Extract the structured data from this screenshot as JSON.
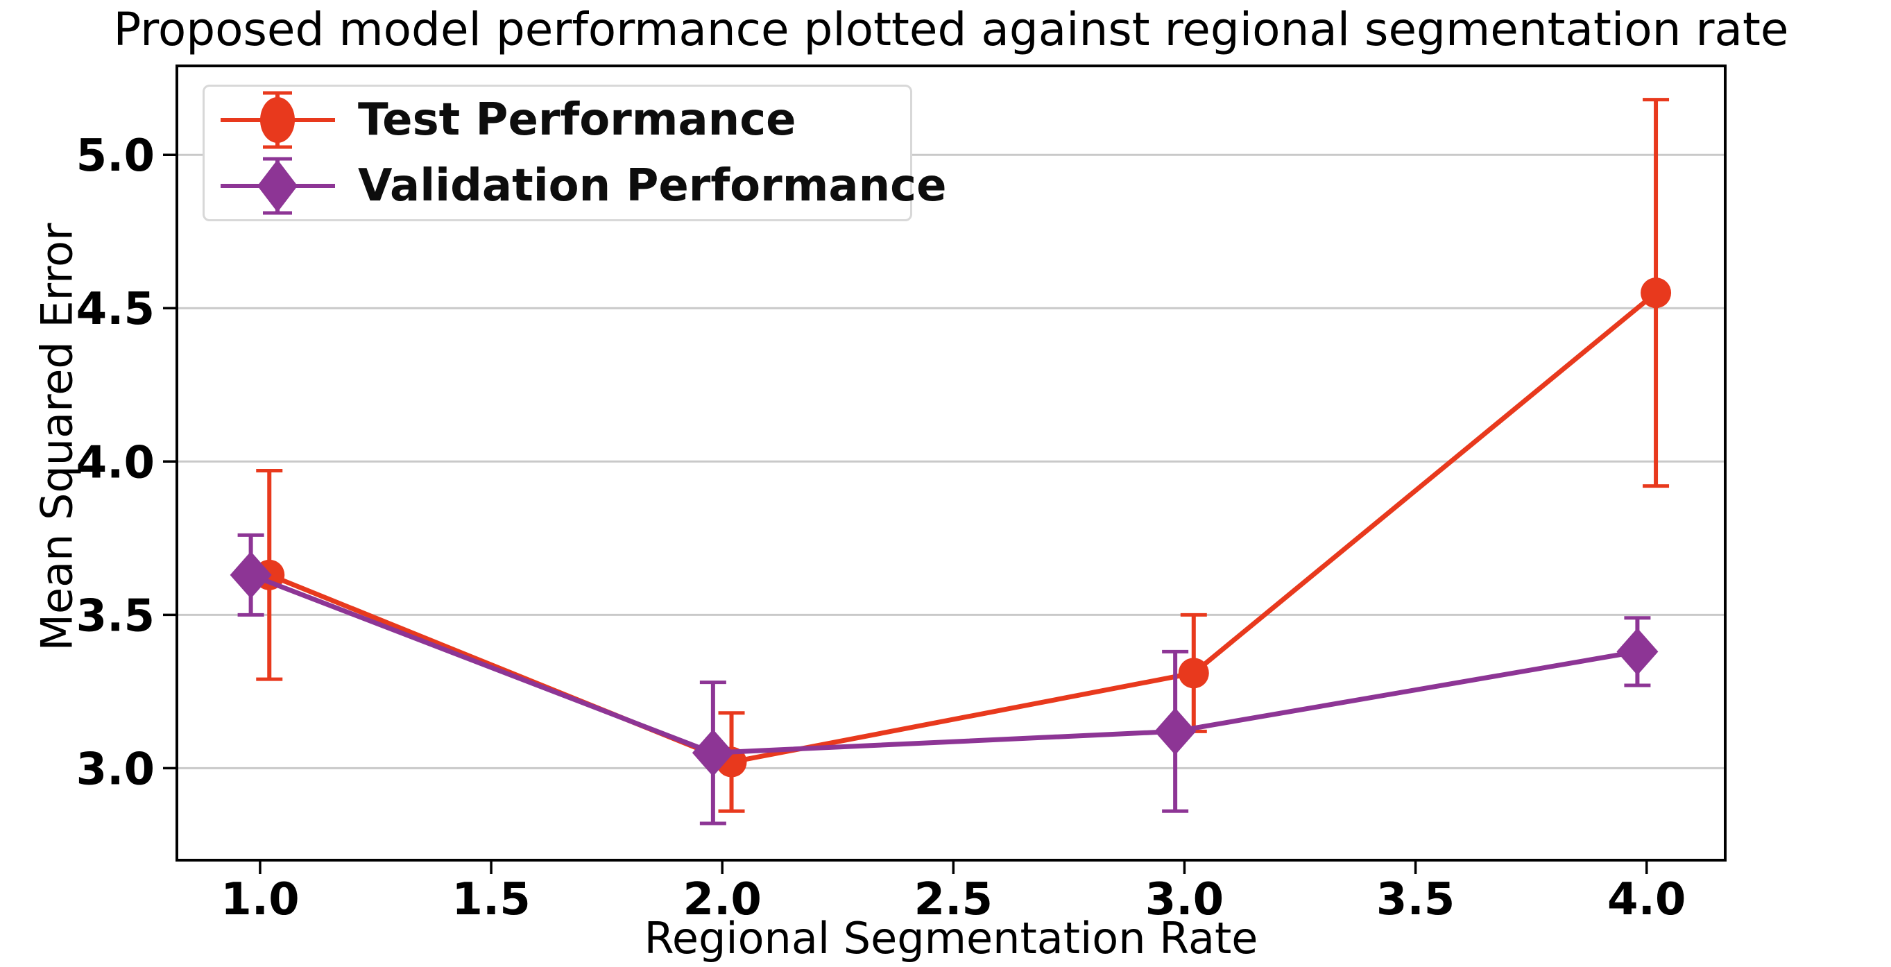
{
  "chart_data": {
    "type": "line",
    "title": "Proposed model performance plotted against regional segmentation rate",
    "xlabel": "Regional Segmentation Rate",
    "ylabel": "Mean Squared Error",
    "xlim": [
      0.82,
      4.17
    ],
    "ylim": [
      2.7,
      5.29
    ],
    "grid": "horizontal",
    "grid_color": "#c9c9c9",
    "spine_color": "#000000",
    "x_ticks": {
      "values": [
        1.0,
        1.5,
        2.0,
        2.5,
        3.0,
        3.5,
        4.0
      ],
      "labels": [
        "1.0",
        "1.5",
        "2.0",
        "2.5",
        "3.0",
        "3.5",
        "4.0"
      ]
    },
    "y_ticks": {
      "values": [
        3.0,
        3.5,
        4.0,
        4.5,
        5.0
      ],
      "labels": [
        "3.0",
        "3.5",
        "4.0",
        "4.5",
        "5.0"
      ]
    },
    "legend": {
      "position": "upper left"
    },
    "series": [
      {
        "name": "Test Performance",
        "color": "#e8391d",
        "marker": "circle",
        "x": [
          1.02,
          2.02,
          3.02,
          4.02
        ],
        "y": [
          3.63,
          3.02,
          3.31,
          4.55
        ],
        "yerr": [
          0.34,
          0.16,
          0.19,
          0.63
        ]
      },
      {
        "name": "Validation Performance",
        "color": "#8d3595",
        "marker": "diamond",
        "x": [
          0.98,
          1.98,
          2.98,
          3.98
        ],
        "y": [
          3.63,
          3.05,
          3.12,
          3.38
        ],
        "yerr": [
          0.13,
          0.23,
          0.26,
          0.11
        ]
      }
    ]
  }
}
